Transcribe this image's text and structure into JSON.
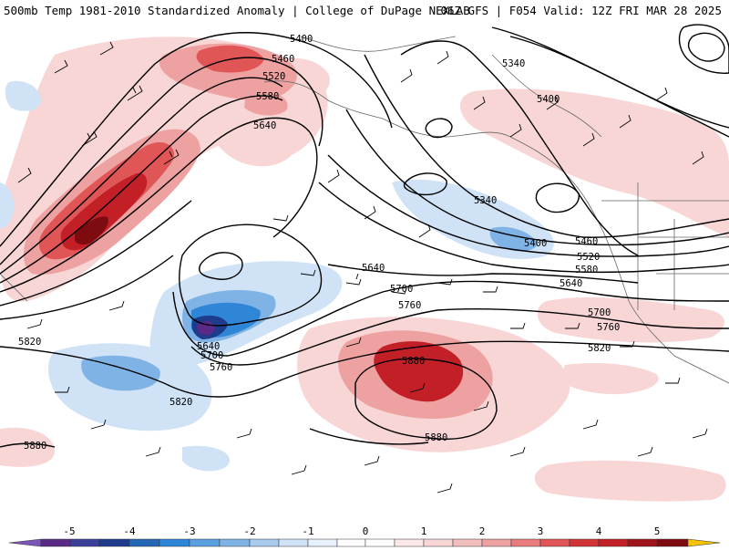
{
  "header": {
    "title_left": "500mb Temp 1981-2010 Standardized Anomaly | College of DuPage NEXLAB",
    "title_right": "06Z GFS | F054 Valid: 12Z FRI MAR 28 2025"
  },
  "colors": {
    "neg5": "#5b2a86",
    "neg4": "#1f3b8c",
    "neg3": "#2f86d6",
    "neg2": "#7fb3e6",
    "neg1": "#cfe2f6",
    "pos1": "#f8d6d6",
    "pos2": "#eea1a1",
    "pos3": "#e05555",
    "pos4": "#c22026",
    "pos5": "#7d0b10",
    "pos_max": "#f5c400"
  },
  "colorbar": {
    "ticks": [
      "-5",
      "-4",
      "-3",
      "-2",
      "-1",
      "0",
      "1",
      "2",
      "3",
      "4",
      "5"
    ]
  },
  "contour_labels": {
    "c5400_a": "5400",
    "c5460_a": "5460",
    "c5520_a": "5520",
    "c5580_a": "5580",
    "c5640_a": "5640",
    "c5340_a": "5340",
    "c5400_b": "5400",
    "c5340_b": "5340",
    "c5400_c": "5400",
    "c5460_b": "5460",
    "c5520_b": "5520",
    "c5580_b": "5580",
    "c5640_b": "5640",
    "c5640_c": "5640",
    "c5700_a": "5700",
    "c5760_a": "5760",
    "c5700_b": "5700",
    "c5760_b": "5760",
    "c5820_a": "5820",
    "c5640_d": "5640",
    "c5700_c": "5700",
    "c5760_c": "5760",
    "c5820_b": "5820",
    "c5820_c": "5820",
    "c5880_a": "5880",
    "c5880_b": "5880",
    "c5880_c": "5880"
  }
}
